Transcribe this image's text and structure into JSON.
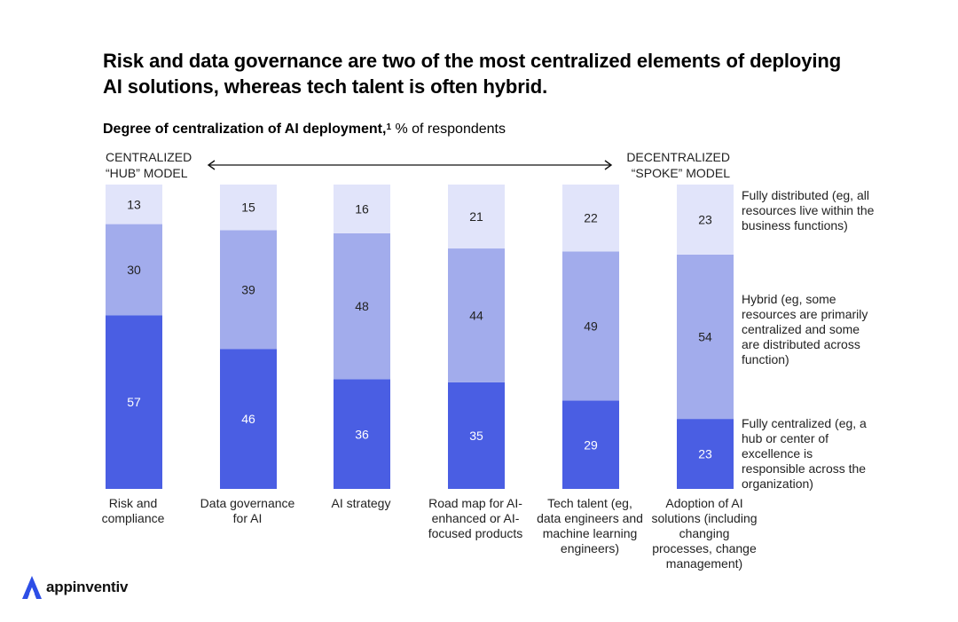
{
  "title": "Risk and data governance are two of the most centralized elements of deploying AI solutions, whereas tech talent is often hybrid.",
  "subtitle": {
    "bold": "Degree of centralization of AI deployment,",
    "footnote": "1",
    "rest": "% of respondents"
  },
  "scale": {
    "left_line1": "CENTRALIZED",
    "left_line2": "“HUB” MODEL",
    "right_line1": "DECENTRALIZED",
    "right_line2": "“SPOKE” MODEL"
  },
  "legend": {
    "fully_distributed": "Fully distributed (eg, all resources live within the business functions)",
    "hybrid": "Hybrid (eg, some resources are primarily centralized and some are distributed across function)",
    "fully_centralized": "Fully centralized (eg, a hub or center of excellence is responsible across the organization)"
  },
  "colors": {
    "fully_centralized": "#4a5ee3",
    "hybrid": "#a2acec",
    "fully_distributed": "#e1e4fa",
    "text_dark": "#222222"
  },
  "chart_data": {
    "type": "bar",
    "stacked": true,
    "title": "Degree of centralization of AI deployment, % of respondents",
    "categories": [
      "Risk and compliance",
      "Data governance for AI",
      "AI strategy",
      "Road map for AI-enhanced or AI-focused products",
      "Tech talent (eg, data engineers and machine learning engineers)",
      "Adoption of AI solutions (including changing processes, change management)"
    ],
    "series": [
      {
        "name": "Fully centralized",
        "values": [
          57,
          46,
          36,
          35,
          29,
          23
        ]
      },
      {
        "name": "Hybrid",
        "values": [
          30,
          39,
          48,
          44,
          49,
          54
        ]
      },
      {
        "name": "Fully distributed",
        "values": [
          13,
          15,
          16,
          21,
          22,
          23
        ]
      }
    ],
    "ylim": [
      0,
      100
    ],
    "xlabel": "",
    "ylabel": ""
  },
  "brand": {
    "name": "appinventiv"
  }
}
